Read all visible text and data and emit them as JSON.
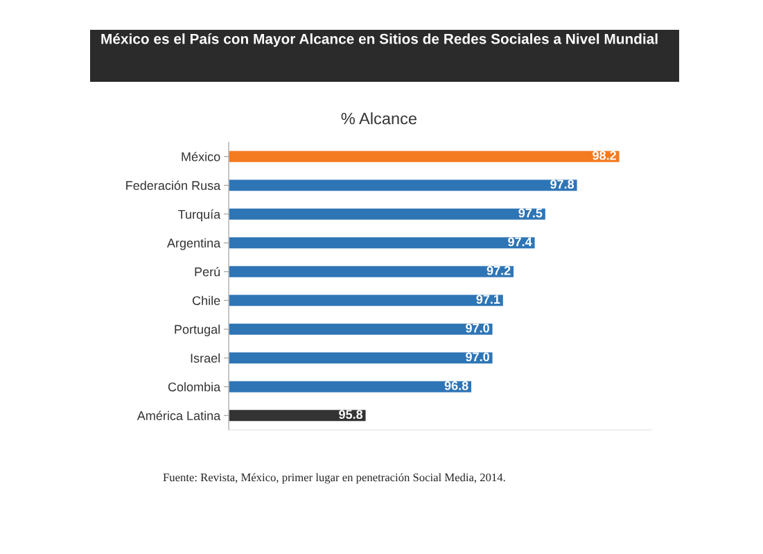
{
  "chart_data": {
    "type": "bar",
    "orientation": "horizontal",
    "title": "México es el País con Mayor Alcance en Sitios de Redes Sociales a Nivel Mundial",
    "subtitle": "% Alcance",
    "categories": [
      "México",
      "Federación Rusa",
      "Turquía",
      "Argentina",
      "Perú",
      "Chile",
      "Portugal",
      "Israel",
      "Colombia",
      "América Latina"
    ],
    "values": [
      98.2,
      97.8,
      97.5,
      97.4,
      97.2,
      97.1,
      97.0,
      97.0,
      96.8,
      95.8
    ],
    "value_labels": [
      "98.2",
      "97.8",
      "97.5",
      "97.4",
      "97.2",
      "97.1",
      "97.0",
      "97.0",
      "96.8",
      "95.8"
    ],
    "colors": [
      "#f47b20",
      "#2e75b6",
      "#2e75b6",
      "#2e75b6",
      "#2e75b6",
      "#2e75b6",
      "#2e75b6",
      "#2e75b6",
      "#2e75b6",
      "#333333"
    ],
    "xlim": [
      94.5,
      98.5
    ],
    "grid": false,
    "legend": false,
    "annotations": [
      "Fuente: Revista, México, primer lugar en penetración Social Media, 2014."
    ]
  }
}
